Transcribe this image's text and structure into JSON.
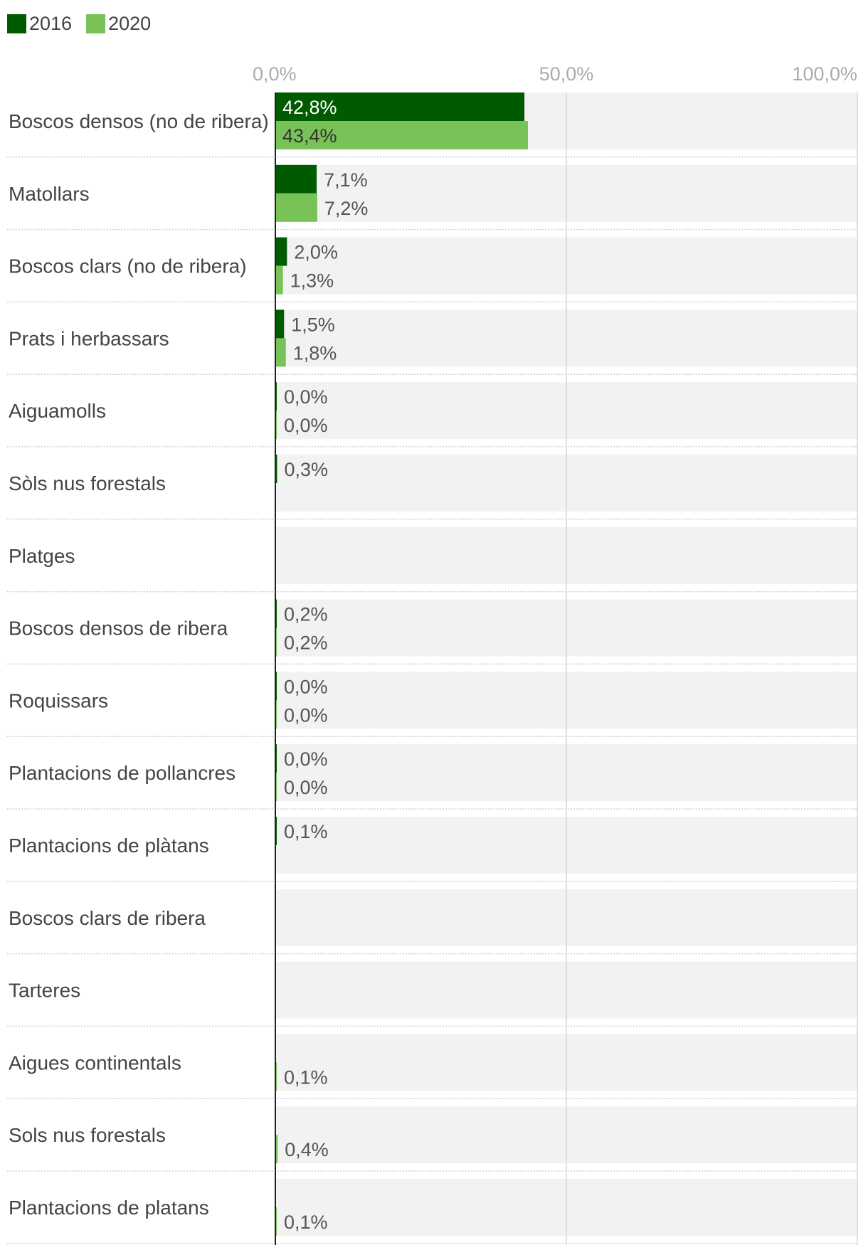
{
  "chart_data": {
    "type": "bar",
    "orientation": "horizontal",
    "legend_position": "top-left",
    "xlim": [
      0,
      100
    ],
    "x_ticks": [
      "0,0%",
      "50,0%",
      "100,0%"
    ],
    "categories": [
      "Boscos densos (no de ribera)",
      "Matollars",
      "Boscos clars (no de ribera)",
      "Prats i herbassars",
      "Aiguamolls",
      "Sòls nus forestals",
      "Platges",
      "Boscos densos de ribera",
      "Roquissars",
      "Plantacions de pollancres",
      "Plantacions de plàtans",
      "Boscos clars de ribera",
      "Tarteres",
      "Aigues continentals",
      "Sols nus forestals",
      "Plantacions de platans"
    ],
    "series": [
      {
        "name": "2016",
        "color": "#005a00",
        "values": [
          42.8,
          7.1,
          2.0,
          1.5,
          0.0,
          0.3,
          null,
          0.2,
          0.0,
          0.0,
          0.1,
          null,
          null,
          null,
          null,
          null
        ],
        "labels": [
          "42,8%",
          "7,1%",
          "2,0%",
          "1,5%",
          "0,0%",
          "0,3%",
          "",
          "0,2%",
          "0,0%",
          "0,0%",
          "0,1%",
          "",
          "",
          "",
          "",
          ""
        ]
      },
      {
        "name": "2020",
        "color": "#78c257",
        "values": [
          43.4,
          7.2,
          1.3,
          1.8,
          0.0,
          null,
          null,
          0.2,
          0.0,
          0.0,
          null,
          null,
          null,
          0.1,
          0.4,
          0.1
        ],
        "labels": [
          "43,4%",
          "7,2%",
          "1,3%",
          "1,8%",
          "0,0%",
          "",
          "",
          "0,2%",
          "0,0%",
          "0,0%",
          "",
          "",
          "",
          "0,1%",
          "0,4%",
          "0,1%"
        ]
      }
    ]
  }
}
